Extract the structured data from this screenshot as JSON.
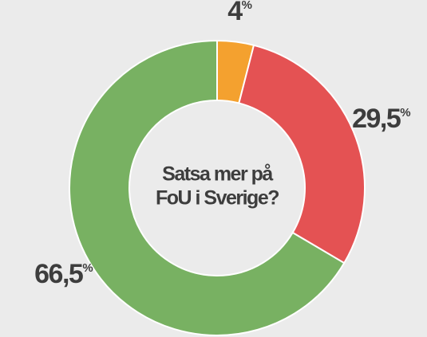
{
  "chart_data": {
    "type": "pie",
    "values": [
      4,
      29.5,
      66.5
    ],
    "value_labels": [
      "4",
      "29,5",
      "66,5"
    ],
    "unit": "%",
    "colors": [
      "#f4a12f",
      "#e45253",
      "#78b162"
    ],
    "center_text": [
      "Satsa mer på",
      "FoU i Sverige?"
    ]
  }
}
